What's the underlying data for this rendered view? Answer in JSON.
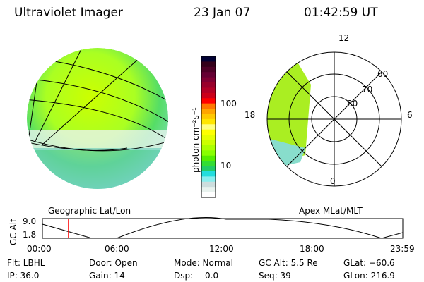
{
  "header": {
    "instrument": "Ultraviolet Imager",
    "date": "23 Jan 07",
    "time": "01:42:59 UT"
  },
  "colorbar": {
    "label": "photon cm⁻²s⁻¹",
    "ticks": [
      "100",
      "10"
    ],
    "colors": [
      "#000033",
      "#33001a",
      "#4d0026",
      "#660033",
      "#800033",
      "#99002b",
      "#b30026",
      "#cc001a",
      "#ff0000",
      "#ff7700",
      "#ffa500",
      "#ffc800",
      "#ffe600",
      "#ffff80",
      "#ffff00",
      "#e6ff00",
      "#ccff00",
      "#aaff00",
      "#88ff00",
      "#55ee00",
      "#33dd33",
      "#22cc66",
      "#22dddd",
      "#88eeee",
      "#ccdddd",
      "#e8f2ee",
      "#ffffff"
    ]
  },
  "polar": {
    "labels": {
      "top": "12",
      "bottom": "0",
      "left": "18",
      "right": "6",
      "r60": "60",
      "r70": "70",
      "r80": "80"
    }
  },
  "panels": {
    "left_label": "Geographic Lat/Lon",
    "right_label": "Apex MLat/MLT"
  },
  "altplot": {
    "ylabel": "GC Alt",
    "ymax": "9.0",
    "ymin": "1.8",
    "xticks": [
      "00:00",
      "06:00",
      "12:00",
      "18:00",
      "23:59"
    ],
    "current_time_fraction": 0.072
  },
  "info": {
    "flt": "Flt: LBHL",
    "ip": "IP: 36.0",
    "door": "Door: Open",
    "gain": "Gain: 14",
    "mode": "Mode: Normal",
    "dsp_label": "Dsp:",
    "dsp_value": "0.0",
    "gcalt": "GC Alt: 5.5 Re",
    "seq": "Seq: 39",
    "glat": "GLat: −60.6",
    "glon": "GLon: 216.9"
  }
}
